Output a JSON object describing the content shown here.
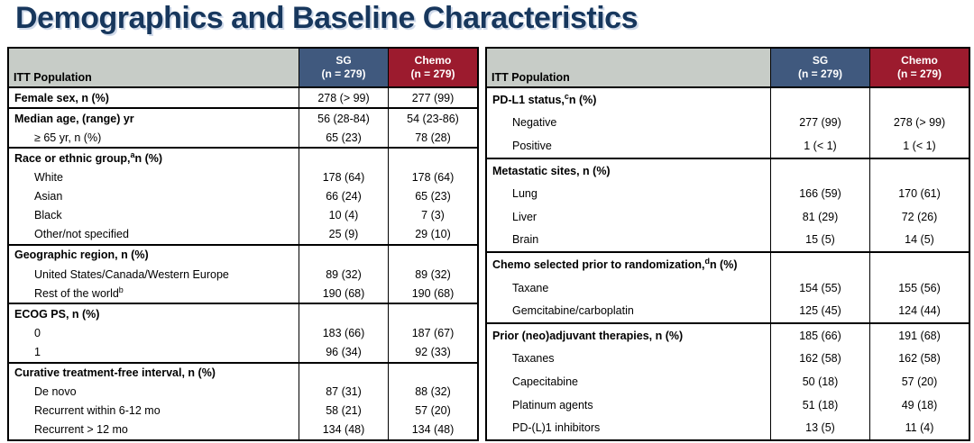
{
  "title": "Demographics and Baseline Characteristics",
  "colors": {
    "title_navy": "#17375D",
    "sg_header_blue": "#40597E",
    "chemo_header_red": "#9C1B2E",
    "corner_grey": "#C7CCC7",
    "border_black": "#000000"
  },
  "tables": [
    {
      "corner_label": "ITT Population",
      "columns": [
        {
          "label": "SG",
          "sub": "(n = 279)"
        },
        {
          "label": "Chemo",
          "sub": "(n = 279)"
        }
      ],
      "groups": [
        {
          "rows": [
            {
              "pre": "Female sex, n (%)",
              "bold": true,
              "sg": "278 (> 99)",
              "chemo": "277 (99)"
            }
          ]
        },
        {
          "rows": [
            {
              "pre": "Median age, (range) yr",
              "bold": true,
              "sg": "56 (28-84)",
              "chemo": "54 (23-86)"
            },
            {
              "pre": "≥ 65 yr, n (%)",
              "indent": true,
              "sg": "65 (23)",
              "chemo": "78 (28)"
            }
          ]
        },
        {
          "rows": [
            {
              "pre": "Race or ethnic group,",
              "sup": "a",
              "post": " n (%)",
              "bold": true,
              "sg": "",
              "chemo": ""
            },
            {
              "pre": "White",
              "indent": true,
              "sg": "178 (64)",
              "chemo": "178 (64)"
            },
            {
              "pre": "Asian",
              "indent": true,
              "sg": "66 (24)",
              "chemo": "65 (23)"
            },
            {
              "pre": "Black",
              "indent": true,
              "sg": "10 (4)",
              "chemo": "7 (3)"
            },
            {
              "pre": "Other/not specified",
              "indent": true,
              "sg": "25 (9)",
              "chemo": "29 (10)"
            }
          ]
        },
        {
          "rows": [
            {
              "pre": "Geographic region, n (%)",
              "bold": true,
              "sg": "",
              "chemo": ""
            },
            {
              "pre": "United States/Canada/Western Europe",
              "indent": true,
              "sg": "89 (32)",
              "chemo": "89 (32)"
            },
            {
              "pre": "Rest of the world",
              "sup": "b",
              "indent": true,
              "sg": "190 (68)",
              "chemo": "190 (68)"
            }
          ]
        },
        {
          "rows": [
            {
              "pre": "ECOG PS, n (%)",
              "bold": true,
              "sg": "",
              "chemo": ""
            },
            {
              "pre": "0",
              "indent": true,
              "sg": "183 (66)",
              "chemo": "187 (67)"
            },
            {
              "pre": "1",
              "indent": true,
              "sg": "96 (34)",
              "chemo": "92 (33)"
            }
          ]
        },
        {
          "rows": [
            {
              "pre": "Curative treatment-free interval, n (%)",
              "bold": true,
              "sg": "",
              "chemo": ""
            },
            {
              "pre": "De novo",
              "indent": true,
              "sg": "87 (31)",
              "chemo": "88 (32)"
            },
            {
              "pre": "Recurrent within 6-12 mo",
              "indent": true,
              "sg": "58 (21)",
              "chemo": "57 (20)"
            },
            {
              "pre": "Recurrent > 12 mo",
              "indent": true,
              "sg": "134 (48)",
              "chemo": "134 (48)"
            }
          ]
        }
      ]
    },
    {
      "corner_label": "ITT Population",
      "columns": [
        {
          "label": "SG",
          "sub": "(n = 279)"
        },
        {
          "label": "Chemo",
          "sub": "(n = 279)"
        }
      ],
      "groups": [
        {
          "rows": [
            {
              "pre": "PD-L1 status,",
              "sup": "c",
              "post": " n (%)",
              "bold": true,
              "sg": "",
              "chemo": ""
            },
            {
              "pre": "Negative",
              "indent": true,
              "sg": "277 (99)",
              "chemo": "278 (> 99)"
            },
            {
              "pre": "Positive",
              "indent": true,
              "sg": "1 (< 1)",
              "chemo": "1 (< 1)"
            }
          ]
        },
        {
          "rows": [
            {
              "pre": "Metastatic sites, n (%)",
              "bold": true,
              "sg": "",
              "chemo": ""
            },
            {
              "pre": "Lung",
              "indent": true,
              "sg": "166 (59)",
              "chemo": "170 (61)"
            },
            {
              "pre": "Liver",
              "indent": true,
              "sg": "81 (29)",
              "chemo": "72 (26)"
            },
            {
              "pre": "Brain",
              "indent": true,
              "sg": "15 (5)",
              "chemo": "14 (5)"
            }
          ]
        },
        {
          "rows": [
            {
              "pre": "Chemo selected prior to randomization,",
              "sup": "d",
              "post": " n (%)",
              "bold": true,
              "sg": "",
              "chemo": ""
            },
            {
              "pre": "Taxane",
              "indent": true,
              "sg": "154 (55)",
              "chemo": "155 (56)"
            },
            {
              "pre": "Gemcitabine/carboplatin",
              "indent": true,
              "sg": "125 (45)",
              "chemo": "124 (44)"
            }
          ]
        },
        {
          "rows": [
            {
              "pre": "Prior (neo)adjuvant therapies, n (%)",
              "bold": true,
              "sg": "185 (66)",
              "chemo": "191 (68)"
            },
            {
              "pre": "Taxanes",
              "indent": true,
              "sg": "162 (58)",
              "chemo": "162 (58)"
            },
            {
              "pre": "Capecitabine",
              "indent": true,
              "sg": "50 (18)",
              "chemo": "57 (20)"
            },
            {
              "pre": "Platinum agents",
              "indent": true,
              "sg": "51 (18)",
              "chemo": "49 (18)"
            },
            {
              "pre": "PD-(L)1 inhibitors",
              "indent": true,
              "sg": "13 (5)",
              "chemo": "11 (4)"
            }
          ]
        }
      ]
    }
  ]
}
